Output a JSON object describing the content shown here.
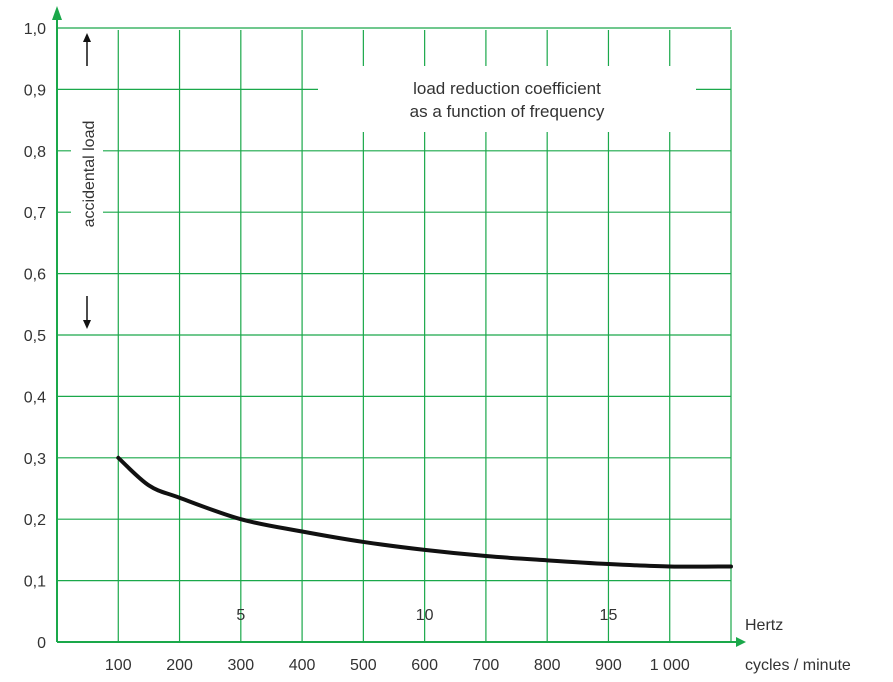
{
  "chart_data": {
    "type": "line",
    "title_lines": [
      "load reduction coefficient",
      "as a function of frequency"
    ],
    "vertical_label": "accidental load",
    "y_ticks": [
      "0",
      "0,1",
      "0,2",
      "0,3",
      "0,4",
      "0,5",
      "0,6",
      "0,7",
      "0,8",
      "0,9",
      "1,0"
    ],
    "ylim": [
      0,
      1.0
    ],
    "x_cycles_ticks": [
      {
        "value": 100,
        "label": "100"
      },
      {
        "value": 200,
        "label": "200"
      },
      {
        "value": 300,
        "label": "300"
      },
      {
        "value": 400,
        "label": "400"
      },
      {
        "value": 500,
        "label": "500"
      },
      {
        "value": 600,
        "label": "600"
      },
      {
        "value": 700,
        "label": "700"
      },
      {
        "value": 800,
        "label": "800"
      },
      {
        "value": 900,
        "label": "900"
      },
      {
        "value": 1000,
        "label": "1 000"
      }
    ],
    "x_hertz_ticks": [
      {
        "value": 5,
        "label": "5"
      },
      {
        "value": 10,
        "label": "10"
      },
      {
        "value": 15,
        "label": "15"
      }
    ],
    "x_unit_top": "Hertz",
    "x_unit_bottom": "cycles / minute",
    "xlim_cycles": [
      0,
      1100
    ],
    "grid": true,
    "series": [
      {
        "x": [
          100,
          150,
          200,
          300,
          400,
          500,
          600,
          700,
          800,
          900,
          1000,
          1100
        ],
        "y": [
          0.3,
          0.255,
          0.235,
          0.2,
          0.18,
          0.163,
          0.15,
          0.14,
          0.133,
          0.127,
          0.123,
          0.123
        ]
      }
    ],
    "colors": {
      "grid": "#1aa84a",
      "axis": "#1aa84a",
      "line": "#111111",
      "text": "#333333"
    }
  }
}
